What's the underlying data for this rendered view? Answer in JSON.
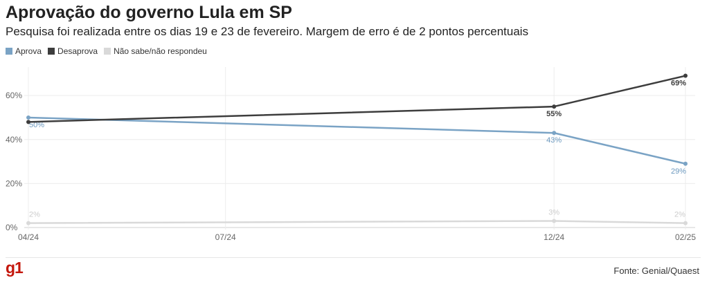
{
  "header": {
    "title": "Aprovação do governo Lula em SP",
    "subtitle": "Pesquisa foi realizada entre os dias 19 e 23 de fevereiro. Margem de erro é de 2 pontos percentuais"
  },
  "legend": {
    "items": [
      {
        "label": "Aprova",
        "color": "#7aa3c5"
      },
      {
        "label": "Desaprova",
        "color": "#3d3d3d"
      },
      {
        "label": "Não sabe/não respondeu",
        "color": "#d9d9d9"
      }
    ]
  },
  "footer": {
    "logo": "g1",
    "source": "Fonte: Genial/Quaest"
  },
  "chart_data": {
    "type": "line",
    "x": [
      "04/24",
      "12/24",
      "02/25"
    ],
    "x_ticks": [
      "04/24",
      "07/24",
      "12/24",
      "02/25"
    ],
    "y_ticks": [
      "0%",
      "20%",
      "40%",
      "60%"
    ],
    "ylim": [
      0,
      72
    ],
    "grid": true,
    "legend_position": "top-left",
    "series": [
      {
        "name": "Aprova",
        "color": "#7aa3c5",
        "values": [
          50,
          43,
          29
        ],
        "labels": [
          "50%",
          "43%",
          "29%"
        ]
      },
      {
        "name": "Desaprova",
        "color": "#3d3d3d",
        "values": [
          48,
          55,
          69
        ],
        "labels": [
          "",
          "55%",
          "69%"
        ]
      },
      {
        "name": "Não sabe/não respondeu",
        "color": "#d9d9d9",
        "values": [
          2,
          3,
          2
        ],
        "labels": [
          "2%",
          "3%",
          "2%"
        ]
      }
    ]
  }
}
